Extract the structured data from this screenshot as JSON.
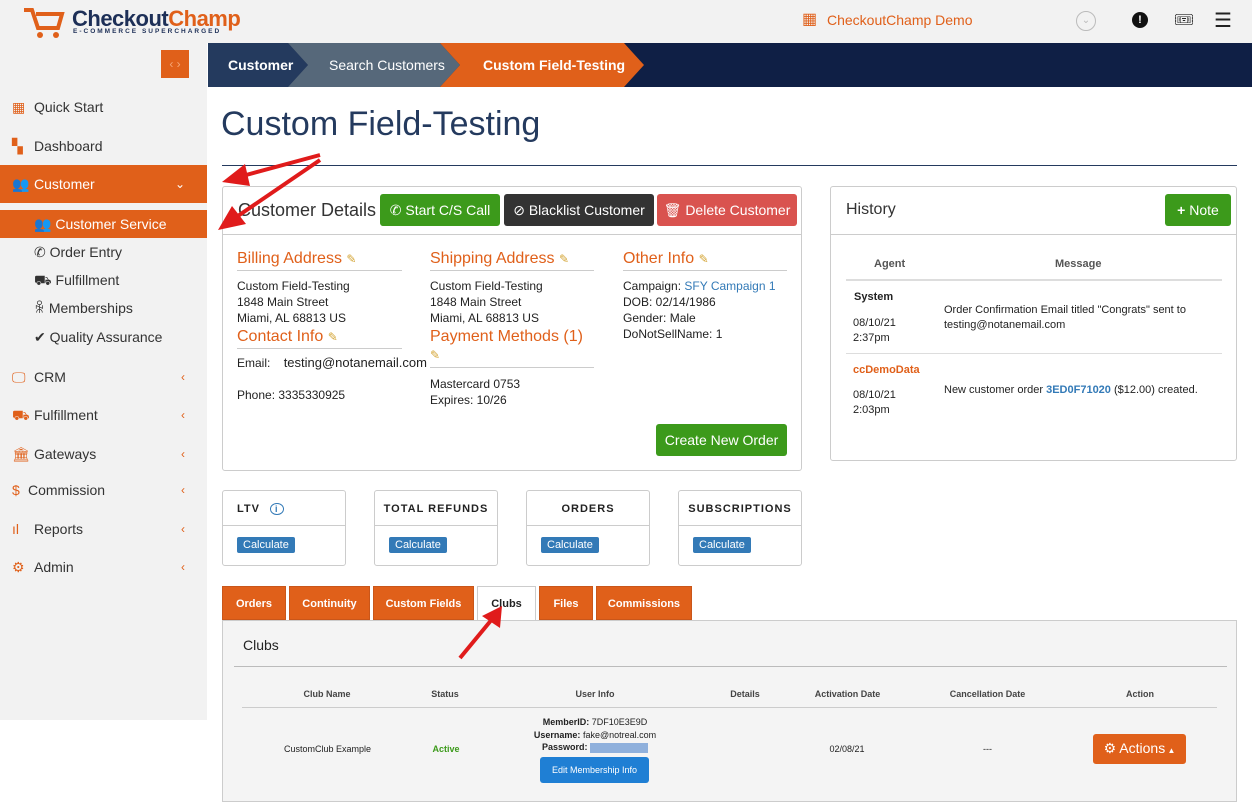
{
  "brand": {
    "name_a": "Checkout",
    "name_b": "Champ",
    "tagline": "E-COMMERCE SUPERCHARGED"
  },
  "topbar": {
    "account": "CheckoutChamp Demo",
    "icons": [
      "building-icon",
      "chevron-circle-icon",
      "alert-icon",
      "ticket-icon",
      "menu-icon"
    ]
  },
  "sidebar": {
    "items": [
      {
        "label": "Quick Start",
        "icon": "grid-icon"
      },
      {
        "label": "Dashboard",
        "icon": "dashboard-icon"
      },
      {
        "label": "Customer",
        "icon": "users-icon",
        "active": true
      },
      {
        "label": "CRM",
        "icon": "monitor-icon"
      },
      {
        "label": "Fulfillment",
        "icon": "truck-icon"
      },
      {
        "label": "Gateways",
        "icon": "bank-icon"
      },
      {
        "label": "Commission",
        "icon": "dollar-icon"
      },
      {
        "label": "Reports",
        "icon": "bar-chart-icon"
      },
      {
        "label": "Admin",
        "icon": "gear-icon"
      }
    ],
    "sub_items": [
      {
        "label": "Customer Service",
        "active": true
      },
      {
        "label": "Order Entry"
      },
      {
        "label": "Fulfillment"
      },
      {
        "label": "Memberships"
      },
      {
        "label": "Quality Assurance"
      }
    ]
  },
  "breadcrumb": [
    "Customer",
    "Search Customers",
    "Custom Field-Testing"
  ],
  "page_title": "Custom Field-Testing",
  "details": {
    "title": "Customer Details",
    "buttons": {
      "call": "Start C/S Call",
      "blacklist": "Blacklist Customer",
      "delete": "Delete Customer"
    },
    "billing": {
      "title": "Billing Address",
      "lines": [
        "Custom Field-Testing",
        "1848 Main Street",
        "Miami, AL 68813 US"
      ]
    },
    "shipping": {
      "title": "Shipping Address",
      "lines": [
        "Custom Field-Testing",
        "1848 Main Street",
        "Miami, AL 68813 US"
      ]
    },
    "other": {
      "title": "Other Info",
      "campaign_label": "Campaign:",
      "campaign": "SFY Campaign 1",
      "dob": "DOB: 02/14/1986",
      "gender": "Gender: Male",
      "dns": "DoNotSellName: 1"
    },
    "contact": {
      "title": "Contact Info",
      "email_label": "Email:",
      "email": "testing@notanemail.com",
      "phone": "Phone: 3335330925"
    },
    "payment": {
      "title": "Payment Methods (1)",
      "card": "Mastercard 0753",
      "expires": "Expires: 10/26"
    },
    "create_order": "Create New Order"
  },
  "history": {
    "title": "History",
    "note_button": "Note",
    "columns": [
      "Agent",
      "Message"
    ],
    "rows": [
      {
        "agent": "System",
        "date": "08/10/21",
        "time": "2:37pm",
        "message": "Order Confirmation Email titled \"Congrats\" sent to testing@notanemail.com"
      },
      {
        "agent": "ccDemoData",
        "date": "08/10/21",
        "time": "2:03pm",
        "msg_pre": "New customer order ",
        "order": "3ED0F71020",
        "msg_post": " ($12.00) created."
      }
    ]
  },
  "stats": [
    {
      "label": "LTV",
      "button": "Calculate"
    },
    {
      "label": "TOTAL REFUNDS",
      "button": "Calculate"
    },
    {
      "label": "ORDERS",
      "button": "Calculate"
    },
    {
      "label": "SUBSCRIPTIONS",
      "button": "Calculate"
    }
  ],
  "tabs": [
    "Orders",
    "Continuity",
    "Custom Fields",
    "Clubs",
    "Files",
    "Commissions"
  ],
  "active_tab": "Clubs",
  "clubs": {
    "title": "Clubs",
    "columns": [
      "Club Name",
      "Status",
      "User Info",
      "Details",
      "Activation Date",
      "Cancellation Date",
      "Action"
    ],
    "row": {
      "name": "CustomClub Example",
      "status": "Active",
      "member_label": "MemberID:",
      "member": "7DF10E3E9D",
      "user_label": "Username:",
      "user": "fake@notreal.com",
      "pass_label": "Password:",
      "edit": "Edit Membership Info",
      "activation": "02/08/21",
      "cancellation": "---",
      "action": "Actions"
    }
  },
  "colors": {
    "accent": "#e0601a",
    "navy": "#0f1f45",
    "green": "#3c9a1b",
    "blue": "#337ab7"
  }
}
